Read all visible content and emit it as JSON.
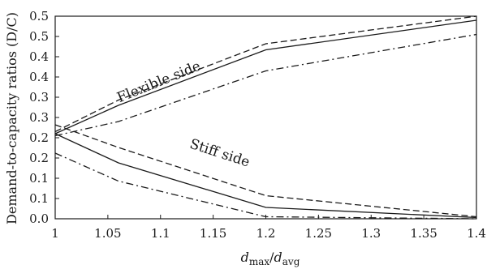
{
  "chart_data": {
    "type": "line",
    "xlabel_main": "d",
    "xlabel_sub1": "max",
    "xlabel_sep": "/",
    "xlabel_main2": "d",
    "xlabel_sub2": "avg",
    "ylabel": "Demand-to-capacity ratios (D/C)",
    "xlim": [
      1.0,
      1.4
    ],
    "ylim": [
      0.0,
      0.5
    ],
    "xticks": [
      {
        "value": 1.0,
        "label": "1"
      },
      {
        "value": 1.05,
        "label": "1.05"
      },
      {
        "value": 1.1,
        "label": "1.1"
      },
      {
        "value": 1.15,
        "label": "1.15"
      },
      {
        "value": 1.2,
        "label": "1.2"
      },
      {
        "value": 1.25,
        "label": "1.25"
      },
      {
        "value": 1.3,
        "label": "1.3"
      },
      {
        "value": 1.35,
        "label": "1.35"
      },
      {
        "value": 1.4,
        "label": "1.4"
      }
    ],
    "yticks": [
      {
        "value": 0.0,
        "label": "0.0"
      },
      {
        "value": 0.05,
        "label": "0.1"
      },
      {
        "value": 0.1,
        "label": "0.1"
      },
      {
        "value": 0.15,
        "label": "0.2"
      },
      {
        "value": 0.2,
        "label": "0.2"
      },
      {
        "value": 0.25,
        "label": "0.3"
      },
      {
        "value": 0.3,
        "label": "0.3"
      },
      {
        "value": 0.35,
        "label": "0.4"
      },
      {
        "value": 0.4,
        "label": "0.4"
      },
      {
        "value": 0.45,
        "label": "0.5"
      },
      {
        "value": 0.5,
        "label": "0.5"
      }
    ],
    "annotations": [
      {
        "text": "Flexible side",
        "x": 1.1,
        "y": 0.328,
        "angle": -22
      },
      {
        "text": "Stiff side",
        "x": 1.155,
        "y": 0.152,
        "angle": 18
      }
    ],
    "series": [
      {
        "style": "solid",
        "x": [
          1.0,
          1.06,
          1.2,
          1.4
        ],
        "y": [
          0.21,
          0.28,
          0.417,
          0.49
        ]
      },
      {
        "style": "dashed",
        "x": [
          1.0,
          1.06,
          1.2,
          1.4
        ],
        "y": [
          0.215,
          0.293,
          0.432,
          0.52
        ]
      },
      {
        "style": "dashdot",
        "x": [
          1.0,
          1.06,
          1.2,
          1.4
        ],
        "y": [
          0.205,
          0.24,
          0.365,
          0.455
        ]
      },
      {
        "style": "solid",
        "x": [
          1.0,
          1.06,
          1.2,
          1.4
        ],
        "y": [
          0.21,
          0.138,
          0.028,
          0.003
        ]
      },
      {
        "style": "dashed",
        "x": [
          1.0,
          1.06,
          1.2,
          1.4
        ],
        "y": [
          0.232,
          0.176,
          0.057,
          0.005
        ]
      },
      {
        "style": "dashdot",
        "x": [
          1.0,
          1.06,
          1.2,
          1.4
        ],
        "y": [
          0.162,
          0.093,
          0.005,
          0.0
        ]
      }
    ]
  }
}
